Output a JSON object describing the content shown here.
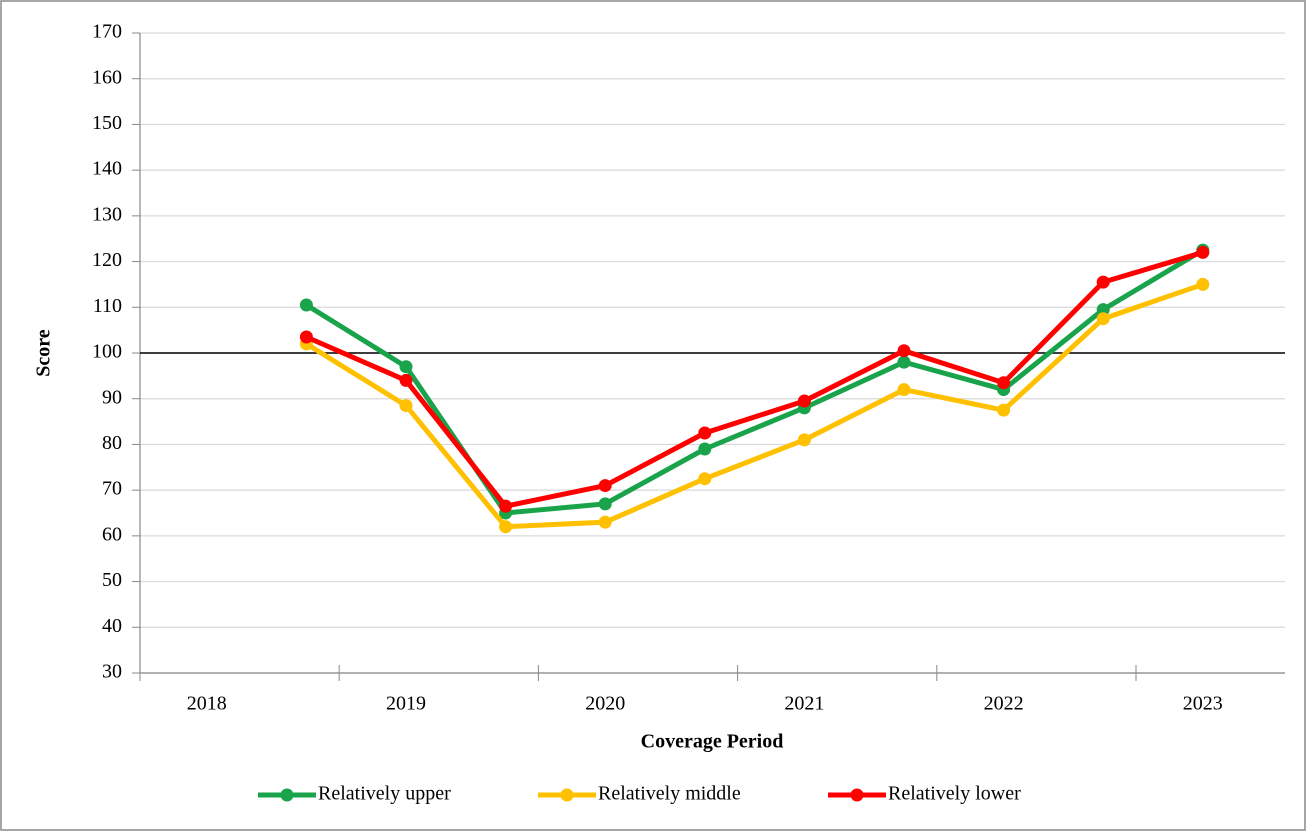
{
  "chart_data": {
    "type": "line",
    "x_axis_label": "Coverage Period",
    "y_axis_label": "Score",
    "categories": [
      "2018",
      null,
      "2019",
      null,
      "2020",
      null,
      "2021",
      null,
      "2022",
      null,
      "2023"
    ],
    "series": [
      {
        "name": "Relatively upper",
        "color": "#19a34a",
        "values": [
          null,
          110.5,
          97,
          65,
          67,
          79,
          88,
          98,
          92,
          109.5,
          122.5
        ]
      },
      {
        "name": "Relatively middle",
        "color": "#ffc000",
        "values": [
          null,
          102,
          88.5,
          62,
          63,
          72.5,
          81,
          92,
          87.5,
          107.5,
          115
        ]
      },
      {
        "name": "Relatively lower",
        "color": "#ff0000",
        "values": [
          null,
          103.5,
          94,
          66.5,
          71,
          82.5,
          89.5,
          100.5,
          93.5,
          115.5,
          122
        ]
      }
    ],
    "ylim": [
      30,
      170
    ],
    "yticks": [
      30,
      40,
      50,
      60,
      70,
      80,
      90,
      100,
      110,
      120,
      130,
      140,
      150,
      160,
      170
    ],
    "reference_line": 100,
    "grid": true,
    "legend": "bottom"
  }
}
